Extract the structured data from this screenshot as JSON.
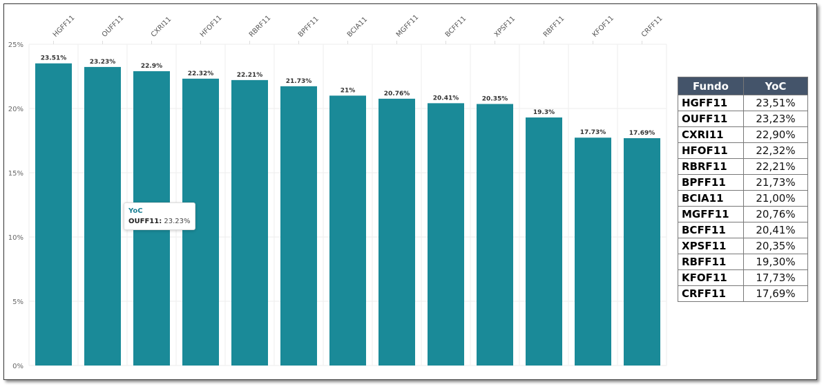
{
  "chart_data": {
    "type": "bar",
    "categories": [
      "HGFF11",
      "OUFF11",
      "CXRI11",
      "HFOF11",
      "RBRF11",
      "BPFF11",
      "BCIA11",
      "MGFF11",
      "BCFF11",
      "XPSF11",
      "RBFF11",
      "KFOF11",
      "CRFF11"
    ],
    "values": [
      23.51,
      23.23,
      22.9,
      22.32,
      22.21,
      21.73,
      21,
      20.76,
      20.41,
      20.35,
      19.3,
      17.73,
      17.69
    ],
    "data_labels": [
      "23.51%",
      "23.23%",
      "22.9%",
      "22.32%",
      "22.21%",
      "21.73%",
      "21%",
      "20.76%",
      "20.41%",
      "20.35%",
      "19.3%",
      "17.73%",
      "17.69%"
    ],
    "yticks": [
      "0%",
      "5%",
      "10%",
      "15%",
      "20%",
      "25%"
    ],
    "ylim": [
      0,
      25
    ],
    "xaxis_position": "top",
    "bar_color": "#1a8a98",
    "grid": true,
    "title": "",
    "xlabel": "",
    "ylabel": ""
  },
  "tooltip": {
    "title": "YoC",
    "key": "OUFF11:",
    "value": "23.23%"
  },
  "table": {
    "headers": [
      "Fundo",
      "YoC"
    ],
    "rows": [
      [
        "HGFF11",
        "23,51%"
      ],
      [
        "OUFF11",
        "23,23%"
      ],
      [
        "CXRI11",
        "22,90%"
      ],
      [
        "HFOF11",
        "22,32%"
      ],
      [
        "RBRF11",
        "22,21%"
      ],
      [
        "BPFF11",
        "21,73%"
      ],
      [
        "BCIA11",
        "21,00%"
      ],
      [
        "MGFF11",
        "20,76%"
      ],
      [
        "BCFF11",
        "20,41%"
      ],
      [
        "XPSF11",
        "20,35%"
      ],
      [
        "RBFF11",
        "19,30%"
      ],
      [
        "KFOF11",
        "17,73%"
      ],
      [
        "CRFF11",
        "17,69%"
      ]
    ]
  }
}
